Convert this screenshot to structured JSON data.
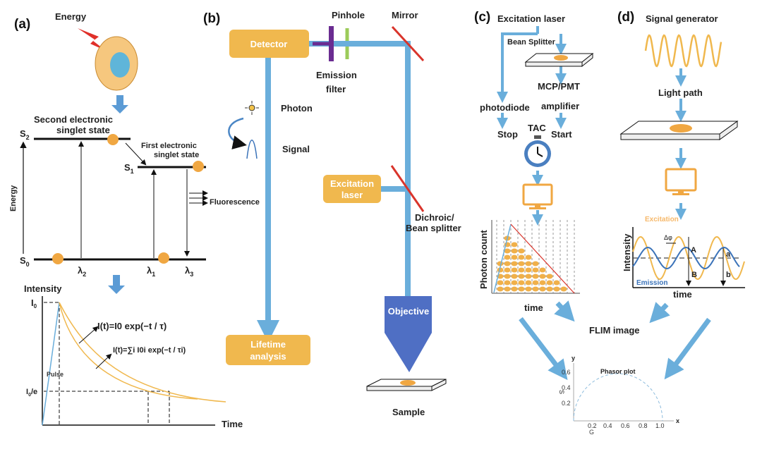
{
  "colors": {
    "accent_blue": "#6AAEDB",
    "orange": "#F0B84E",
    "objective": "#4F6FC4",
    "red": "#D9342B",
    "purple": "#6A2C91",
    "green": "#9CCB5A",
    "emission_wave": "#3B73B9"
  },
  "panel_a": {
    "label": "(a)",
    "energy_title": "Energy",
    "second_state": [
      "Second electronic",
      "singlet state"
    ],
    "first_state": [
      "First electronic",
      "singlet state"
    ],
    "s2": "S",
    "s2_sub": "2",
    "s1": "S",
    "s1_sub": "1",
    "s0": "S",
    "s0_sub": "0",
    "energy_axis": "Energy",
    "lambda2": "λ",
    "lambda2_sub": "2",
    "lambda1": "λ",
    "lambda1_sub": "1",
    "lambda3": "λ",
    "lambda3_sub": "3",
    "fluorescence": "Fluorescence",
    "decay": {
      "ylabel": "Intensity",
      "xlabel": "Time",
      "i0": "I",
      "i0_sub": "0",
      "i0e": "I",
      "i0e_sub": "0",
      "i0e_tail": "/e",
      "pulse": "Pulse",
      "eq1": "I(t)=I0 exp(−t / τ)",
      "eq2": "I(t)=∑i I0i exp(−t / τi)"
    }
  },
  "panel_b": {
    "label": "(b)",
    "detector": "Detector",
    "pinhole": "Pinhole",
    "mirror": "Mirror",
    "emission_filter": [
      "Emission",
      "filter"
    ],
    "photon": "Photon",
    "signal": "Signal",
    "excitation_laser": [
      "Excitation",
      "laser"
    ],
    "dichroic": [
      "Dichroic/",
      "Bean splitter"
    ],
    "objective": "Objective",
    "lifetime": [
      "Lifetime",
      "analysis"
    ],
    "sample": "Sample"
  },
  "panel_c": {
    "label": "(c)",
    "excitation_laser": "Excitation laser",
    "bean_splitter": "Bean Splitter",
    "mcp_pmt": "MCP/PMT",
    "amplifier": "amplifier",
    "photodiode": "photodiode",
    "stop": "Stop",
    "tac": "TAC",
    "start": "Start",
    "ylabel": "Photon count",
    "xlabel": "time"
  },
  "panel_d": {
    "label": "(d)",
    "signal_generator": "Signal generator",
    "light_path": "Light path",
    "ylabel": "Intensity",
    "xlabel": "time",
    "excitation": "Excitation",
    "emission": "Emission",
    "delta_phi": "Δφ",
    "A": "A",
    "B": "B",
    "a": "a",
    "b": "b"
  },
  "flim": {
    "title": "FLIM image",
    "phasor_title": "Phasor plot",
    "y_axis": "y",
    "x_axis": "x",
    "s_label": "S",
    "g_label": "G",
    "y_ticks": [
      "0.2",
      "0.4",
      "0.6"
    ],
    "x_ticks": [
      "0.2",
      "0.4",
      "0.6",
      "0.8",
      "1.0"
    ]
  }
}
